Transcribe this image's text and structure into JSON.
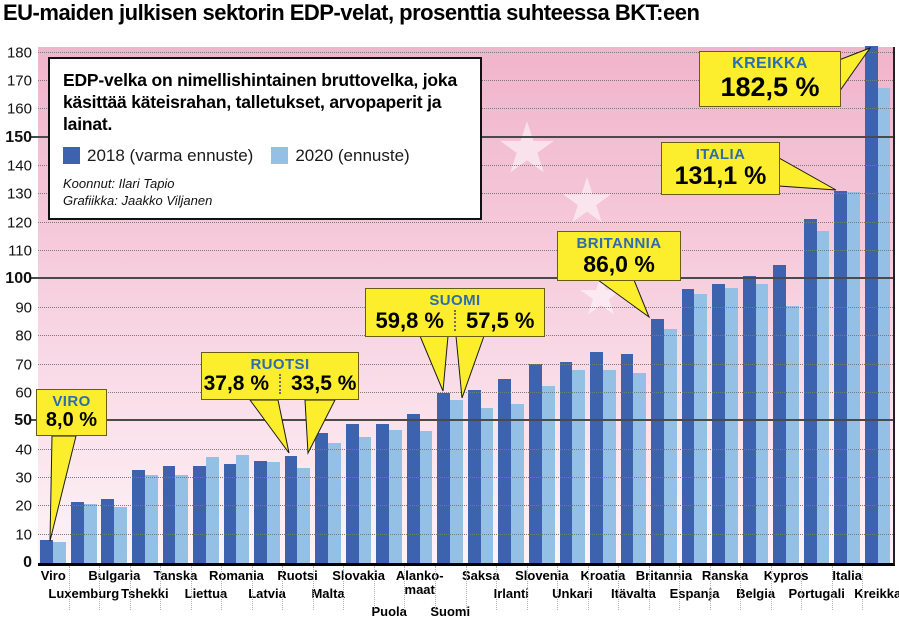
{
  "title": "EU-maiden julkisen sektorin EDP-velat, prosenttia suhteessa BKT:een",
  "info_box": {
    "description": "EDP-velka on nimellishintainen bruttovelka, joka käsittää käteisrahan, talletukset, arvopaperit ja lainat.",
    "credits": [
      "Koonnut: Ilari Tapio",
      "Grafiikka: Jaakko Viljanen"
    ]
  },
  "legend": [
    {
      "label": "2018 (varma ennuste)",
      "color": "#3d63ae"
    },
    {
      "label": "2020 (ennuste)",
      "color": "#95c0e6"
    }
  ],
  "colors": {
    "bar_2018": "#3d63ae",
    "bar_2020": "#95c0e6",
    "callout_bg": "#fcee2d",
    "callout_title": "#2e6cb0",
    "plot_bg_top": "#f1b4cb",
    "plot_bg_bottom": "#fdf3f7",
    "star": "#ffffff"
  },
  "chart_data": {
    "type": "bar",
    "title": "EU-maiden julkisen sektorin EDP-velat, prosenttia suhteessa BKT:een",
    "xlabel": "",
    "ylabel": "",
    "ylim": [
      0,
      182
    ],
    "yticks": [
      0,
      10,
      20,
      30,
      40,
      50,
      60,
      70,
      80,
      90,
      100,
      110,
      120,
      130,
      140,
      150,
      160,
      170,
      180
    ],
    "emphasized_yticks": [
      0,
      50,
      100,
      150
    ],
    "grid": "horizontal-dotted, solid at 50/100/150",
    "legend_position": "top-left box",
    "categories": [
      "Viro",
      "Luxemburg",
      "Bulgaria",
      "Tshekki",
      "Tanska",
      "Liettua",
      "Romania",
      "Latvia",
      "Ruotsi",
      "Malta",
      "Slovakia",
      "Puola",
      "Alankomaat",
      "Suomi",
      "Saksa",
      "Irlanti",
      "Slovenia",
      "Unkari",
      "Kroatia",
      "Itävalta",
      "Britannia",
      "Espanja",
      "Ranska",
      "Belgia",
      "Kypros",
      "Portugali",
      "Italia",
      "Kreikka"
    ],
    "label_wrap": {
      "Alankomaat": "Alanko-|maat"
    },
    "series": [
      {
        "name": "2018 (varma ennuste)",
        "color": "#3d63ae",
        "values": [
          8.0,
          21.4,
          22.6,
          32.7,
          34.1,
          34.2,
          35.0,
          35.9,
          37.8,
          46.0,
          48.9,
          48.9,
          52.4,
          59.8,
          60.9,
          64.8,
          70.1,
          70.8,
          74.6,
          73.8,
          86.0,
          96.7,
          98.5,
          101.3,
          105.0,
          121.5,
          131.1,
          182.5
        ]
      },
      {
        "name": "2020 (ennuste)",
        "color": "#95c0e6",
        "values": [
          7.5,
          20.8,
          19.6,
          31.2,
          31.0,
          37.3,
          38.2,
          35.5,
          33.5,
          42.5,
          44.3,
          46.9,
          46.7,
          57.5,
          54.5,
          56.0,
          62.3,
          68.0,
          68.0,
          67.0,
          82.4,
          95.0,
          97.0,
          98.5,
          90.8,
          117.0,
          131.0,
          167.4
        ]
      }
    ]
  },
  "callouts": [
    {
      "country": "VIRO",
      "values": [
        "8,0 %"
      ]
    },
    {
      "country": "RUOTSI",
      "values": [
        "37,8 %",
        "33,5 %"
      ]
    },
    {
      "country": "SUOMI",
      "values": [
        "59,8 %",
        "57,5 %"
      ]
    },
    {
      "country": "BRITANNIA",
      "values": [
        "86,0 %"
      ]
    },
    {
      "country": "ITALIA",
      "values": [
        "131,1 %"
      ]
    },
    {
      "country": "KREIKKA",
      "values": [
        "182,5 %"
      ]
    }
  ]
}
